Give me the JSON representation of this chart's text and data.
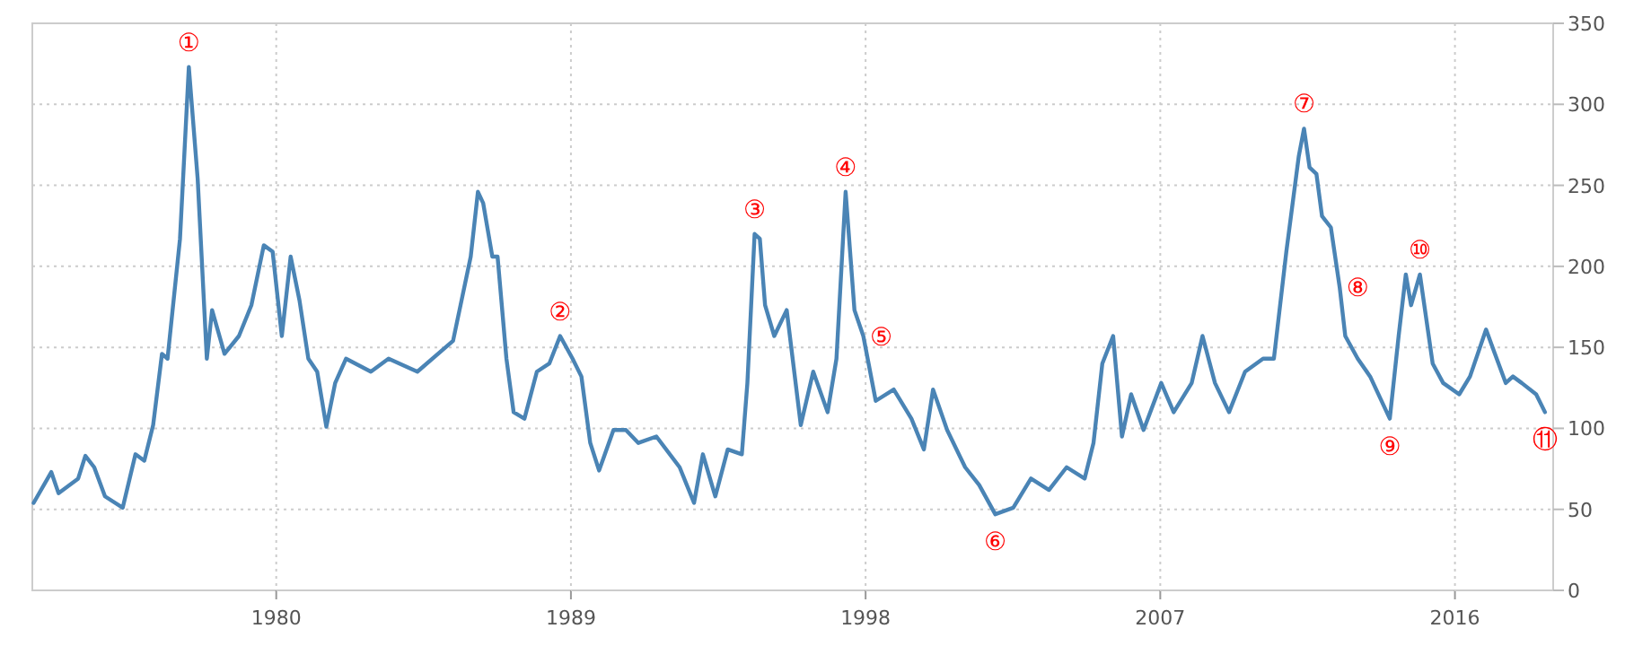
{
  "chart_data": {
    "type": "line",
    "x": [
      1972.59,
      1973.13,
      1973.35,
      1973.95,
      1974.17,
      1974.44,
      1974.77,
      1975.31,
      1975.7,
      1975.97,
      1976.24,
      1976.51,
      1976.68,
      1977.06,
      1977.33,
      1977.6,
      1977.88,
      1978.04,
      1978.42,
      1978.86,
      1979.24,
      1979.62,
      1979.89,
      1980.17,
      1980.44,
      1980.71,
      1980.98,
      1981.25,
      1981.53,
      1981.8,
      1982.13,
      1982.89,
      1983.43,
      1984.31,
      1985.4,
      1985.94,
      1986.16,
      1986.32,
      1986.6,
      1986.76,
      1987.03,
      1987.25,
      1987.58,
      1987.96,
      1988.34,
      1988.67,
      1989.05,
      1989.32,
      1989.59,
      1989.86,
      1990.3,
      1990.68,
      1991.06,
      1991.61,
      1992.32,
      1992.76,
      1993.03,
      1993.41,
      1993.79,
      1994.22,
      1994.39,
      1994.61,
      1994.77,
      1994.93,
      1995.21,
      1995.59,
      1996.02,
      1996.4,
      1996.84,
      1997.11,
      1997.39,
      1997.66,
      1997.93,
      1998.31,
      1998.86,
      1999.4,
      1999.78,
      2000.06,
      2000.49,
      2001.04,
      2001.47,
      2001.96,
      2002.51,
      2003.05,
      2003.6,
      2004.14,
      2004.69,
      2004.96,
      2005.23,
      2005.56,
      2005.83,
      2006.11,
      2006.49,
      2007.03,
      2007.41,
      2007.96,
      2008.29,
      2008.67,
      2009.1,
      2009.59,
      2010.14,
      2010.47,
      2010.85,
      2011.23,
      2011.39,
      2011.56,
      2011.77,
      2011.94,
      2012.21,
      2012.48,
      2012.65,
      2013.03,
      2013.41,
      2014.01,
      2014.28,
      2014.5,
      2014.66,
      2014.93,
      2015.32,
      2015.64,
      2016.13,
      2016.46,
      2016.95,
      2017.22,
      2017.55,
      2017.77,
      2018.04,
      2018.48,
      2018.75
    ],
    "series": [
      {
        "color": "#4a84b5",
        "values": [
          54,
          73,
          60,
          69,
          83,
          76,
          58,
          51,
          84,
          80,
          102,
          146,
          143,
          217,
          323,
          254,
          143,
          173,
          146,
          157,
          176,
          213,
          209,
          157,
          206,
          179,
          143,
          135,
          101,
          128,
          143,
          135,
          143,
          135,
          154,
          206,
          246,
          239,
          206,
          206,
          143,
          110,
          106,
          135,
          140,
          157,
          143,
          132,
          91,
          74,
          99,
          99,
          91,
          95,
          76,
          54,
          84,
          58,
          87,
          84,
          128,
          220,
          217,
          176,
          157,
          173,
          102,
          135,
          110,
          143,
          246,
          173,
          157,
          117,
          124,
          106,
          87,
          124,
          99,
          76,
          65,
          47,
          51,
          69,
          62,
          76,
          69,
          91,
          140,
          157,
          95,
          121,
          99,
          128,
          110,
          128,
          157,
          128,
          110,
          135,
          143,
          143,
          209,
          268,
          285,
          261,
          257,
          231,
          224,
          187,
          157,
          143,
          132,
          106,
          157,
          195,
          176,
          195,
          140,
          128,
          121,
          132,
          161,
          146,
          128,
          132,
          128,
          121,
          110
        ]
      }
    ],
    "xlim": [
      1972.55,
      2019.0
    ],
    "ylim": [
      0,
      350
    ],
    "xticks": [
      1980,
      1989,
      1998,
      2007,
      2016
    ],
    "yticks": [
      0,
      50,
      100,
      150,
      200,
      250,
      300,
      350
    ],
    "grid": true,
    "marker": "none",
    "line_style": "solid",
    "annotations": [
      {
        "text": "①",
        "x": 1977.33,
        "y": 323
      },
      {
        "text": "②",
        "x": 1988.67,
        "y": 157
      },
      {
        "text": "③",
        "x": 1994.61,
        "y": 220
      },
      {
        "text": "④",
        "x": 1997.39,
        "y": 246
      },
      {
        "text": "⑤",
        "x": 1997.93,
        "y": 157
      },
      {
        "text": "⑥",
        "x": 2001.96,
        "y": 47
      },
      {
        "text": "⑦",
        "x": 2011.39,
        "y": 285
      },
      {
        "text": "⑧",
        "x": 2012.48,
        "y": 187
      },
      {
        "text": "⑨",
        "x": 2014.01,
        "y": 106
      },
      {
        "text": "⑩",
        "x": 2014.93,
        "y": 195
      },
      {
        "text": "⑪",
        "x": 2018.75,
        "y": 110
      }
    ]
  }
}
